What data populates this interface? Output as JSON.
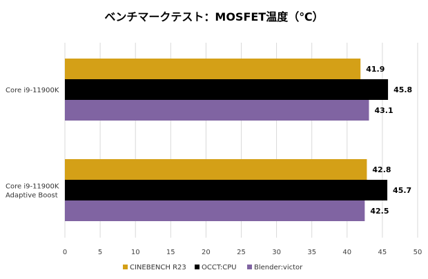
{
  "chart_data": {
    "type": "bar",
    "orientation": "horizontal",
    "title": "ベンチマークテスト：MOSFET温度（℃）",
    "xlabel": "",
    "ylabel": "",
    "xlim": [
      0,
      50
    ],
    "ticks": [
      0,
      5,
      10,
      15,
      20,
      25,
      30,
      35,
      40,
      45,
      50
    ],
    "grid": true,
    "legend_position": "bottom",
    "categories": [
      [
        "Core i9-11900K"
      ],
      [
        "Core i9-11900K",
        "Adaptive Boost"
      ]
    ],
    "series": [
      {
        "name": "CINEBENCH R23",
        "color": "#D4A017",
        "values": [
          41.9,
          42.8
        ]
      },
      {
        "name": "OCCT:CPU",
        "color": "#000000",
        "values": [
          45.8,
          45.7
        ]
      },
      {
        "name": "Blender:victor",
        "color": "#8064A2",
        "values": [
          43.1,
          42.5
        ]
      }
    ]
  }
}
